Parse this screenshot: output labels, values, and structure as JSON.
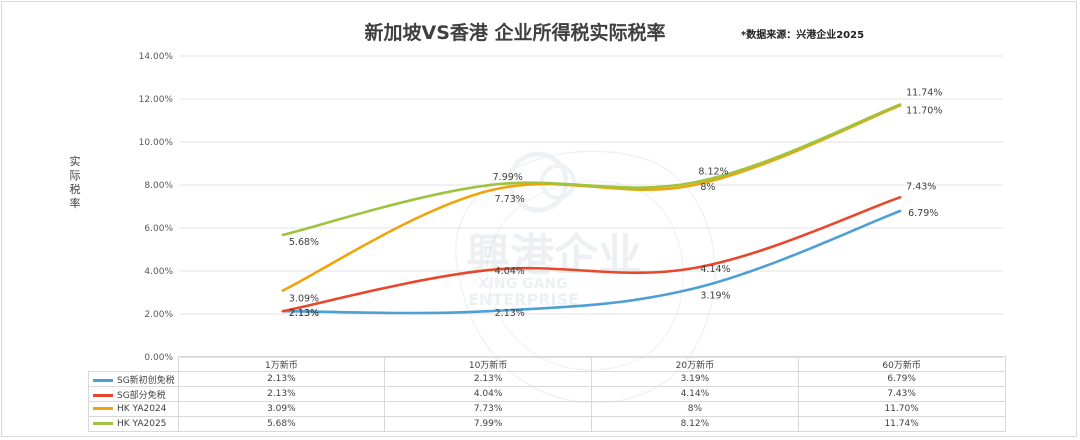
{
  "title": "新加坡VS香港 企业所得税实际税率",
  "source_note": "*数据来源：兴港企业2025",
  "ylabel": "实际税率",
  "watermark": {
    "chinese": "興港企业",
    "line1": "XING GANG",
    "line2": "ENTERPRISE"
  },
  "chart_data": {
    "type": "line",
    "title": "新加坡VS香港 企业所得税实际税率",
    "xlabel": "",
    "ylabel": "实际税率",
    "ylim": [
      0,
      14
    ],
    "y_ticks": [
      "0.00%",
      "2.00%",
      "4.00%",
      "6.00%",
      "8.00%",
      "10.00%",
      "12.00%",
      "14.00%"
    ],
    "categories": [
      "1万新币",
      "10万新币",
      "20万新币",
      "60万新币"
    ],
    "grid": true,
    "legend": "data table below chart",
    "series": [
      {
        "name": "SG新初创免税",
        "color": "#4e9fd3",
        "values": [
          2.13,
          2.13,
          3.19,
          6.79
        ],
        "labels": [
          "2.13%",
          "2.13%",
          "3.19%",
          "6.79%"
        ]
      },
      {
        "name": "SG部分免税",
        "color": "#e8472b",
        "values": [
          2.13,
          4.04,
          4.14,
          7.43
        ],
        "labels": [
          "2.13%",
          "4.04%",
          "4.14%",
          "7.43%"
        ]
      },
      {
        "name": "HK YA2024",
        "color": "#f0a30a",
        "values": [
          3.09,
          7.73,
          8,
          11.7
        ],
        "labels": [
          "3.09%",
          "7.73%",
          "8%",
          "11.70%"
        ]
      },
      {
        "name": "HK YA2025",
        "color": "#9ec33f",
        "values": [
          5.68,
          7.99,
          8.12,
          11.74
        ],
        "labels": [
          "5.68%",
          "7.99%",
          "8.12%",
          "11.74%"
        ]
      }
    ]
  }
}
